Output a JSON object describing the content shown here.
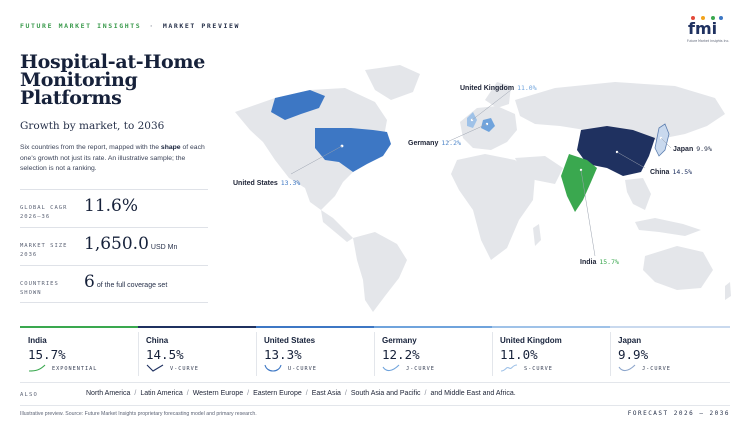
{
  "header": {
    "brand": "FUTURE MARKET INSIGHTS",
    "separator": "·",
    "section": "MARKET PREVIEW",
    "logo_text": "fmi",
    "logo_tagline": "Future Market Insights Inc."
  },
  "title": "Hospital-at-Home Monitoring Platforms",
  "subtitle": "Growth by market, to 2036",
  "description": {
    "part1": "Six countries from the report, mapped with the ",
    "bold": "shape",
    "part2": " of each one's growth not just its rate. An illustrative sample; the selection is not a ranking."
  },
  "stats": {
    "cagr": {
      "label_line1": "GLOBAL CAGR",
      "label_line2": "2026–36",
      "value": "11.6%"
    },
    "market_size": {
      "label_line1": "MARKET SIZE",
      "label_line2": "2036",
      "value": "1,650.0",
      "unit": "USD Mn"
    },
    "countries": {
      "label_line1": "COUNTRIES",
      "label_line2": "SHOWN",
      "value": "6",
      "tail": "of the full coverage set"
    }
  },
  "map_labels": {
    "uk": {
      "name": "United Kingdom",
      "pct": "11.0%"
    },
    "germany": {
      "name": "Germany",
      "pct": "12.2%"
    },
    "us": {
      "name": "United States",
      "pct": "13.3%"
    },
    "japan": {
      "name": "Japan",
      "pct": "9.9%"
    },
    "china": {
      "name": "China",
      "pct": "14.5%"
    },
    "india": {
      "name": "India",
      "pct": "15.7%"
    }
  },
  "cards": [
    {
      "name": "India",
      "value": "15.7%",
      "curve": "EXPONENTIAL",
      "accent": "#3aa84f"
    },
    {
      "name": "China",
      "value": "14.5%",
      "curve": "V-CURVE",
      "accent": "#1f3160"
    },
    {
      "name": "United States",
      "value": "13.3%",
      "curve": "U-CURVE",
      "accent": "#3d77c4"
    },
    {
      "name": "Germany",
      "value": "12.2%",
      "curve": "J-CURVE",
      "accent": "#6fa3dc"
    },
    {
      "name": "United Kingdom",
      "value": "11.0%",
      "curve": "S-CURVE",
      "accent": "#9fc2e8"
    },
    {
      "name": "Japan",
      "value": "9.9%",
      "curve": "J-CURVE",
      "accent": "#c9d9ee"
    }
  ],
  "also": {
    "label": "ALSO",
    "regions": [
      "North America",
      "Latin America",
      "Western Europe",
      "Eastern Europe",
      "East Asia",
      "South Asia and Pacific",
      "and Middle East and Africa."
    ],
    "slash": "/"
  },
  "footer": {
    "note": "Illustrative preview. Source: Future Market Insights proprietary forecasting model and primary research.",
    "forecast": "FORECAST 2026 – 2036"
  },
  "colors": {
    "india": "#3aa84f",
    "china": "#1f3160",
    "us": "#3d77c4",
    "germany": "#6fa3dc",
    "uk": "#9fc2e8",
    "japan": "#c9d9ee",
    "land": "#e4e6ea"
  }
}
